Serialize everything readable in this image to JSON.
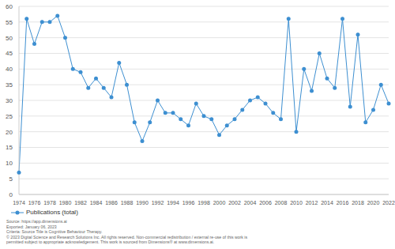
{
  "chart_data": {
    "type": "line",
    "categories": [
      "1974",
      null,
      "1976",
      null,
      "1978",
      null,
      "1980",
      null,
      "1982",
      null,
      "1984",
      null,
      "1986",
      null,
      "1988",
      null,
      "1990",
      null,
      "1992",
      null,
      "1994",
      null,
      "1996",
      null,
      "1998",
      null,
      "2000",
      null,
      "2002",
      null,
      "2004",
      null,
      "2006",
      null,
      "2008",
      null,
      "2010",
      null,
      "2012",
      null,
      "2014",
      null,
      "2016",
      null,
      "2018",
      null,
      "2020",
      null,
      "2022"
    ],
    "series": [
      {
        "name": "Publications (total)",
        "color": "#3d8fd1",
        "marker": "circle",
        "values": [
          7,
          56,
          48,
          55,
          55,
          57,
          50,
          40,
          39,
          34,
          37,
          34,
          31,
          42,
          35,
          23,
          17,
          23,
          30,
          26,
          26,
          24,
          22,
          29,
          25,
          24,
          19,
          22,
          24,
          27,
          30,
          31,
          29,
          26,
          24,
          56,
          20,
          40,
          33,
          45,
          37,
          34,
          56,
          28,
          51,
          23,
          27,
          35,
          29
        ]
      }
    ],
    "ylim": [
      0,
      60
    ],
    "yticks": [
      0,
      5,
      10,
      15,
      20,
      25,
      30,
      35,
      40,
      45,
      50,
      55,
      60
    ],
    "grid": true,
    "legend": "bottom-left",
    "annotations": [
      "Source: https://app.dimensions.ai",
      "Exported: January 06, 2023",
      "Criteria: Source Title is Cognitive Behaviour Therapy.",
      "© 2023 Digital Science and Research Solutions Inc. All rights reserved. Non-commercial redistribution / external re-use of this work is",
      "permitted subject to appropriate acknowledgement. This work is sourced from Dimensions® at www.dimensions.ai."
    ]
  }
}
